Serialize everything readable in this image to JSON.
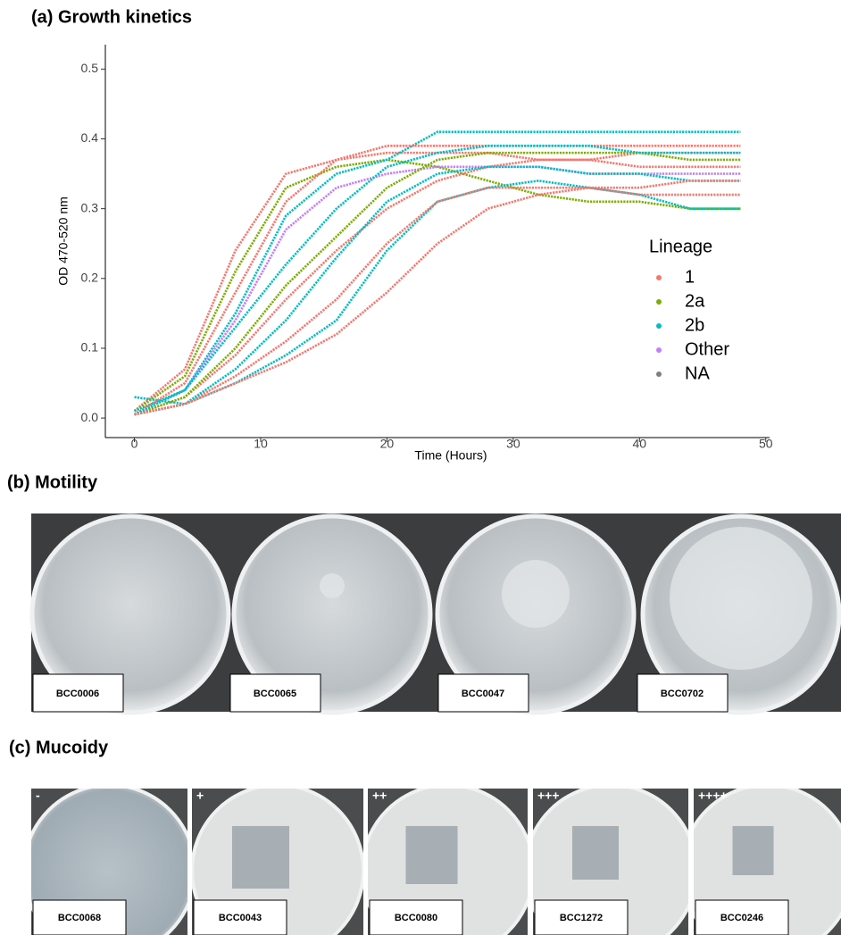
{
  "chart_data": {
    "type": "line",
    "title": "(a) Growth kinetics",
    "x_label": "Time (Hours)",
    "y_label": "OD 470-520 nm",
    "x": [
      0,
      4,
      8,
      12,
      16,
      20,
      24,
      28,
      32,
      36,
      40,
      44,
      48
    ],
    "xlim": [
      -2.3,
      50.3
    ],
    "xticks": [
      0,
      10,
      20,
      30,
      40,
      50
    ],
    "ylim": [
      -0.028,
      0.535
    ],
    "yticks": [
      {
        "value": 0,
        "label": "0.0"
      },
      0.1,
      0.2,
      0.3,
      0.4,
      0.5
    ],
    "grid": false,
    "legend": {
      "title": "Lineage",
      "entries": [
        {
          "name": "1",
          "color": "#F8766D"
        },
        {
          "name": "2a",
          "color": "#7CAE00"
        },
        {
          "name": "2b",
          "color": "#00BFC4"
        },
        {
          "name": "Other",
          "color": "#C77CFF"
        },
        {
          "name": "NA",
          "color": "#7F7F7F"
        }
      ]
    },
    "series": [
      {
        "color": "#F8766D",
        "values": [
          0.01,
          0.07,
          0.24,
          0.35,
          0.37,
          0.38,
          0.38,
          0.38,
          0.37,
          0.37,
          0.36,
          0.36,
          0.36
        ]
      },
      {
        "color": "#7CAE00",
        "values": [
          0.01,
          0.06,
          0.21,
          0.33,
          0.36,
          0.37,
          0.36,
          0.34,
          0.32,
          0.31,
          0.31,
          0.3,
          0.3
        ]
      },
      {
        "color": "#00BFC4",
        "values": [
          0.01,
          0.04,
          0.15,
          0.29,
          0.35,
          0.37,
          0.41,
          0.41,
          0.41,
          0.41,
          0.41,
          0.41,
          0.41
        ]
      },
      {
        "color": "#F8766D",
        "values": [
          0.005,
          0.03,
          0.09,
          0.17,
          0.24,
          0.3,
          0.34,
          0.36,
          0.37,
          0.37,
          0.38,
          0.38,
          0.38
        ]
      },
      {
        "color": "#00BFC4",
        "values": [
          0.03,
          0.02,
          0.05,
          0.09,
          0.14,
          0.24,
          0.31,
          0.33,
          0.34,
          0.33,
          0.32,
          0.3,
          0.3
        ]
      },
      {
        "color": "#F8766D",
        "values": [
          0.005,
          0.02,
          0.06,
          0.11,
          0.17,
          0.25,
          0.31,
          0.33,
          0.33,
          0.33,
          0.32,
          0.32,
          0.32
        ]
      },
      {
        "color": "#C77CFF",
        "values": [
          0.005,
          0.04,
          0.14,
          0.27,
          0.33,
          0.35,
          0.36,
          0.36,
          0.36,
          0.35,
          0.35,
          0.35,
          0.35
        ]
      },
      {
        "color": "#7CAE00",
        "values": [
          0.005,
          0.03,
          0.1,
          0.19,
          0.26,
          0.33,
          0.37,
          0.38,
          0.38,
          0.38,
          0.38,
          0.37,
          0.37
        ]
      },
      {
        "color": "#00BFC4",
        "values": [
          0.005,
          0.02,
          0.07,
          0.14,
          0.23,
          0.31,
          0.35,
          0.36,
          0.36,
          0.35,
          0.35,
          0.34,
          0.34
        ]
      },
      {
        "color": "#F8766D",
        "values": [
          0.005,
          0.05,
          0.18,
          0.31,
          0.37,
          0.39,
          0.39,
          0.39,
          0.39,
          0.39,
          0.39,
          0.39,
          0.39
        ]
      },
      {
        "color": "#00BFC4",
        "values": [
          0.005,
          0.04,
          0.13,
          0.22,
          0.3,
          0.36,
          0.38,
          0.39,
          0.39,
          0.39,
          0.38,
          0.38,
          0.38
        ]
      },
      {
        "color": "#F8766D",
        "values": [
          0.005,
          0.02,
          0.05,
          0.08,
          0.12,
          0.18,
          0.25,
          0.3,
          0.32,
          0.33,
          0.33,
          0.34,
          0.34
        ]
      }
    ]
  },
  "motility": {
    "title": "(b) Motility",
    "plates": [
      "BCC0006",
      "BCC0065",
      "BCC0047",
      "BCC0702"
    ]
  },
  "mucoidy": {
    "title": "(c) Mucoidy",
    "plates": [
      {
        "grade": "-",
        "label": "BCC0068"
      },
      {
        "grade": "+",
        "label": "BCC0043"
      },
      {
        "grade": "++",
        "label": "BCC0080"
      },
      {
        "grade": "+++",
        "label": "BCC1272"
      },
      {
        "grade": "++++",
        "label": "BCC0246"
      }
    ]
  }
}
